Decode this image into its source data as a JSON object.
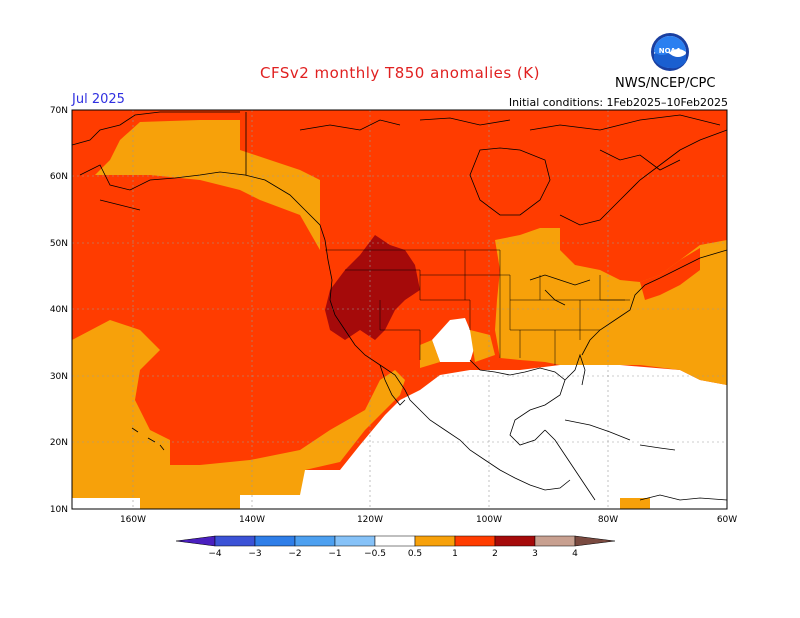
{
  "header": {
    "title": "CFSv2 monthly T850 anomalies (K)",
    "month": "Jul 2025",
    "initial_conditions": "Initial conditions: 1Feb2025–10Feb2025",
    "agency": "NWS/NCEP/CPC",
    "logo_text": "NOAA"
  },
  "axes": {
    "lat_labels": [
      "70N",
      "60N",
      "50N",
      "40N",
      "30N",
      "20N",
      "10N"
    ],
    "lon_labels": [
      "160W",
      "140W",
      "120W",
      "100W",
      "80W",
      "60W"
    ]
  },
  "colorbar": {
    "labels": [
      "−4",
      "−3",
      "−2",
      "−1",
      "−0.5",
      "0.5",
      "1",
      "2",
      "3",
      "4"
    ],
    "colors": [
      "#4a1fbf",
      "#3b52d6",
      "#2f7ee8",
      "#4da0f0",
      "#86c2f8",
      "#ffffff",
      "#f7a10a",
      "#ff3c00",
      "#a50a0a",
      "#c8a090",
      "#7a4a40"
    ]
  },
  "legend_colors": {
    "weak_warm": "#f7a10a",
    "moderate_warm": "#ff3c00",
    "strong_warm": "#a50a0a"
  }
}
